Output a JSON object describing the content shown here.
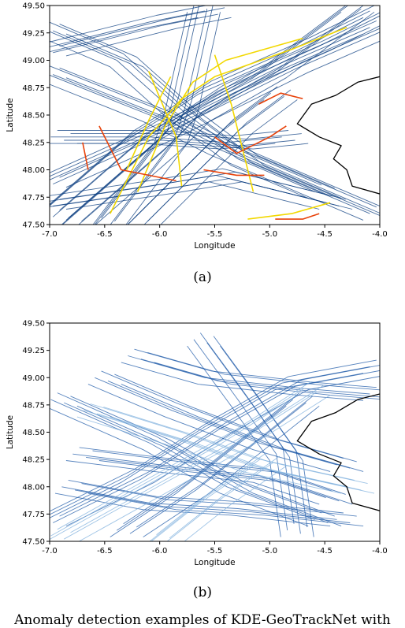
{
  "chart_data": [
    {
      "type": "line",
      "panel_label": "(a)",
      "xlabel": "Longitude",
      "ylabel": "Latitude",
      "xlim": [
        -7.0,
        -4.0
      ],
      "ylim": [
        47.5,
        49.5
      ],
      "xticks": [
        "-7.0",
        "-6.5",
        "-6.0",
        "-5.5",
        "-5.0",
        "-4.5",
        "-4.0"
      ],
      "yticks": [
        "47.50",
        "47.75",
        "48.00",
        "48.25",
        "48.50",
        "48.75",
        "49.00",
        "49.25",
        "49.50"
      ],
      "grid": false,
      "series": [
        {
          "category": "normal",
          "color": "#0b3d80",
          "tracks": [
            [
              [
                -7.0,
                47.6
              ],
              [
                -6.2,
                48.3
              ],
              [
                -5.8,
                48.55
              ],
              [
                -5.5,
                48.75
              ],
              [
                -4.6,
                49.15
              ],
              [
                -4.0,
                49.45
              ]
            ],
            [
              [
                -7.0,
                47.9
              ],
              [
                -6.0,
                48.35
              ],
              [
                -5.6,
                48.55
              ],
              [
                -4.8,
                48.95
              ],
              [
                -4.0,
                49.3
              ]
            ],
            [
              [
                -6.8,
                47.5
              ],
              [
                -6.0,
                48.2
              ],
              [
                -5.7,
                48.5
              ],
              [
                -5.0,
                48.9
              ],
              [
                -4.2,
                49.5
              ]
            ],
            [
              [
                -7.0,
                49.3
              ],
              [
                -6.3,
                49.0
              ],
              [
                -5.8,
                48.55
              ],
              [
                -5.2,
                48.1
              ],
              [
                -4.5,
                47.8
              ]
            ],
            [
              [
                -7.0,
                48.9
              ],
              [
                -6.0,
                48.5
              ],
              [
                -5.4,
                48.2
              ],
              [
                -4.7,
                47.9
              ],
              [
                -4.0,
                47.6
              ]
            ],
            [
              [
                -6.9,
                48.3
              ],
              [
                -6.0,
                48.3
              ],
              [
                -5.3,
                48.25
              ],
              [
                -4.8,
                48.3
              ]
            ],
            [
              [
                -7.0,
                49.1
              ],
              [
                -6.0,
                49.35
              ],
              [
                -5.5,
                49.45
              ]
            ],
            [
              [
                -6.5,
                47.5
              ],
              [
                -5.9,
                48.3
              ],
              [
                -5.8,
                48.6
              ],
              [
                -5.6,
                49.5
              ]
            ],
            [
              [
                -6.2,
                47.5
              ],
              [
                -5.7,
                48.0
              ],
              [
                -5.3,
                48.4
              ],
              [
                -4.9,
                48.7
              ]
            ],
            [
              [
                -7.0,
                47.7
              ],
              [
                -6.0,
                47.85
              ],
              [
                -5.4,
                47.95
              ],
              [
                -4.4,
                47.7
              ]
            ]
          ]
        },
        {
          "category": "anomaly",
          "color": "#f2d800",
          "tracks": [
            [
              [
                -6.45,
                47.6
              ],
              [
                -6.1,
                48.3
              ],
              [
                -5.8,
                48.65
              ],
              [
                -5.5,
                48.85
              ],
              [
                -4.8,
                49.1
              ],
              [
                -4.3,
                49.3
              ]
            ],
            [
              [
                -6.2,
                47.8
              ],
              [
                -5.95,
                48.4
              ],
              [
                -5.7,
                48.8
              ],
              [
                -5.4,
                49.0
              ],
              [
                -4.7,
                49.2
              ]
            ],
            [
              [
                -6.1,
                48.9
              ],
              [
                -5.85,
                48.3
              ],
              [
                -5.8,
                47.85
              ]
            ],
            [
              [
                -5.5,
                49.05
              ],
              [
                -5.35,
                48.6
              ],
              [
                -5.15,
                47.8
              ]
            ],
            [
              [
                -6.3,
                48.0
              ],
              [
                -6.1,
                48.45
              ],
              [
                -5.9,
                48.85
              ]
            ],
            [
              [
                -5.2,
                47.55
              ],
              [
                -4.8,
                47.6
              ],
              [
                -4.45,
                47.7
              ]
            ]
          ]
        },
        {
          "category": "anomaly-high",
          "color": "#e8420a",
          "tracks": [
            [
              [
                -6.55,
                48.4
              ],
              [
                -6.35,
                48.0
              ],
              [
                -6.1,
                47.95
              ],
              [
                -5.85,
                47.9
              ]
            ],
            [
              [
                -5.5,
                48.3
              ],
              [
                -5.3,
                48.15
              ],
              [
                -5.0,
                48.3
              ],
              [
                -4.85,
                48.4
              ]
            ],
            [
              [
                -5.6,
                48.0
              ],
              [
                -5.3,
                47.95
              ],
              [
                -5.05,
                47.95
              ]
            ],
            [
              [
                -5.1,
                48.6
              ],
              [
                -4.9,
                48.7
              ],
              [
                -4.7,
                48.65
              ]
            ],
            [
              [
                -6.7,
                48.25
              ],
              [
                -6.65,
                48.0
              ]
            ],
            [
              [
                -4.95,
                47.55
              ],
              [
                -4.7,
                47.55
              ],
              [
                -4.55,
                47.6
              ]
            ]
          ]
        },
        {
          "category": "coastline",
          "color": "#000000",
          "tracks": [
            [
              [
                -4.0,
                48.85
              ],
              [
                -4.2,
                48.8
              ],
              [
                -4.4,
                48.68
              ],
              [
                -4.62,
                48.6
              ],
              [
                -4.75,
                48.42
              ],
              [
                -4.55,
                48.3
              ],
              [
                -4.35,
                48.22
              ],
              [
                -4.42,
                48.1
              ],
              [
                -4.3,
                48.0
              ],
              [
                -4.25,
                47.85
              ],
              [
                -4.0,
                47.78
              ]
            ]
          ]
        }
      ]
    },
    {
      "type": "line",
      "panel_label": "(b)",
      "xlabel": "Longitude",
      "ylabel": "Latitude",
      "xlim": [
        -7.0,
        -4.0
      ],
      "ylim": [
        47.5,
        49.5
      ],
      "xticks": [
        "-7.0",
        "-6.5",
        "-6.0",
        "-5.5",
        "-5.0",
        "-4.5",
        "-4.0"
      ],
      "yticks": [
        "47.50",
        "47.75",
        "48.00",
        "48.25",
        "48.50",
        "48.75",
        "49.00",
        "49.25",
        "49.50"
      ],
      "grid": false,
      "series": [
        {
          "category": "tracks",
          "color": "#1e5aa8",
          "tracks": [
            [
              [
                -7.0,
                47.7
              ],
              [
                -6.2,
                48.1
              ],
              [
                -5.5,
                48.55
              ],
              [
                -4.8,
                48.95
              ],
              [
                -4.0,
                49.1
              ]
            ],
            [
              [
                -6.9,
                48.8
              ],
              [
                -6.0,
                48.4
              ],
              [
                -5.3,
                48.0
              ],
              [
                -4.5,
                47.7
              ]
            ],
            [
              [
                -6.5,
                49.0
              ],
              [
                -5.8,
                48.7
              ],
              [
                -5.0,
                48.4
              ],
              [
                -4.3,
                48.2
              ]
            ],
            [
              [
                -6.7,
                48.3
              ],
              [
                -5.9,
                48.2
              ],
              [
                -5.0,
                48.1
              ],
              [
                -4.4,
                47.9
              ]
            ],
            [
              [
                -5.6,
                49.35
              ],
              [
                -5.2,
                48.8
              ],
              [
                -4.85,
                48.3
              ],
              [
                -4.75,
                47.6
              ]
            ],
            [
              [
                -6.8,
                48.0
              ],
              [
                -6.0,
                47.85
              ],
              [
                -5.2,
                47.8
              ],
              [
                -4.3,
                47.7
              ]
            ],
            [
              [
                -6.2,
                49.2
              ],
              [
                -5.5,
                49.0
              ],
              [
                -4.6,
                48.9
              ],
              [
                -4.0,
                48.85
              ]
            ],
            [
              [
                -6.3,
                47.6
              ],
              [
                -5.7,
                48.0
              ],
              [
                -5.2,
                48.4
              ],
              [
                -4.7,
                48.8
              ]
            ]
          ]
        },
        {
          "category": "tracks-light",
          "color": "#7fb0de",
          "tracks": [
            [
              [
                -6.9,
                47.55
              ],
              [
                -6.1,
                48.0
              ],
              [
                -5.3,
                48.45
              ],
              [
                -4.6,
                48.9
              ]
            ],
            [
              [
                -6.6,
                48.7
              ],
              [
                -5.8,
                48.45
              ],
              [
                -5.1,
                48.2
              ],
              [
                -4.2,
                48.0
              ]
            ],
            [
              [
                -6.0,
                47.5
              ],
              [
                -5.5,
                47.9
              ],
              [
                -5.0,
                48.25
              ]
            ]
          ]
        },
        {
          "category": "coastline",
          "color": "#000000",
          "tracks": [
            [
              [
                -4.0,
                48.85
              ],
              [
                -4.2,
                48.8
              ],
              [
                -4.4,
                48.68
              ],
              [
                -4.62,
                48.6
              ],
              [
                -4.75,
                48.42
              ],
              [
                -4.55,
                48.3
              ],
              [
                -4.35,
                48.22
              ],
              [
                -4.42,
                48.1
              ],
              [
                -4.3,
                48.0
              ],
              [
                -4.25,
                47.85
              ],
              [
                -4.0,
                47.78
              ]
            ]
          ]
        }
      ]
    }
  ],
  "captions": {
    "a": "(a)",
    "b": "(b)",
    "footer": "Anomaly detection examples of KDE-GeoTrackNet with"
  },
  "colors": {
    "normal": "#0b3d80",
    "anomaly": "#f2d800",
    "anomaly_high": "#e8420a"
  }
}
